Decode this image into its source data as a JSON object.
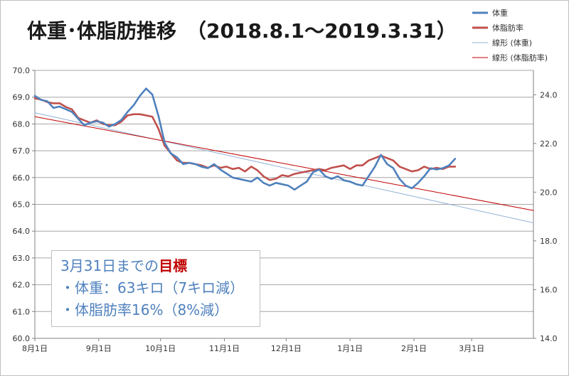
{
  "chart_data": {
    "type": "line",
    "title": "体重･体脂肪推移　（2018.8.1～2019.3.31）",
    "x_range": [
      "2018-08-01",
      "2019-03-31"
    ],
    "x_tick_labels": [
      "8月1日",
      "9月1日",
      "10月1日",
      "11月1日",
      "12月1日",
      "1月1日",
      "2月1日",
      "3月1日"
    ],
    "y_left": {
      "min": 60.0,
      "max": 70.0,
      "ticks": [
        "60.0",
        "61.0",
        "62.0",
        "63.0",
        "64.0",
        "65.0",
        "66.0",
        "67.0",
        "68.0",
        "69.0",
        "70.0"
      ]
    },
    "y_right": {
      "min": 14.0,
      "max": 25.0,
      "ticks": [
        "14.0",
        "16.0",
        "18.0",
        "20.0",
        "22.0",
        "24.0"
      ]
    },
    "grid": "horizontal",
    "legend_position": "top-right",
    "series": [
      {
        "name": "体重",
        "axis": "left",
        "color": "#4f81bd",
        "points": [
          [
            "2018-08-01",
            69.05
          ],
          [
            "2018-08-04",
            68.9
          ],
          [
            "2018-08-07",
            68.85
          ],
          [
            "2018-08-10",
            68.6
          ],
          [
            "2018-08-13",
            68.65
          ],
          [
            "2018-08-16",
            68.55
          ],
          [
            "2018-08-19",
            68.45
          ],
          [
            "2018-08-22",
            68.2
          ],
          [
            "2018-08-25",
            67.95
          ],
          [
            "2018-08-28",
            68.05
          ],
          [
            "2018-08-31",
            68.1
          ],
          [
            "2018-09-03",
            68.05
          ],
          [
            "2018-09-06",
            67.9
          ],
          [
            "2018-09-09",
            68.0
          ],
          [
            "2018-09-12",
            68.15
          ],
          [
            "2018-09-15",
            68.45
          ],
          [
            "2018-09-18",
            68.7
          ],
          [
            "2018-09-21",
            69.05
          ],
          [
            "2018-09-24",
            69.32
          ],
          [
            "2018-09-27",
            69.1
          ],
          [
            "2018-09-30",
            68.3
          ],
          [
            "2018-10-03",
            67.3
          ],
          [
            "2018-10-06",
            66.9
          ],
          [
            "2018-10-09",
            66.75
          ],
          [
            "2018-10-12",
            66.5
          ],
          [
            "2018-10-15",
            66.55
          ],
          [
            "2018-10-18",
            66.5
          ],
          [
            "2018-10-21",
            66.4
          ],
          [
            "2018-10-24",
            66.35
          ],
          [
            "2018-10-27",
            66.5
          ],
          [
            "2018-10-30",
            66.3
          ],
          [
            "2018-11-02",
            66.15
          ],
          [
            "2018-11-05",
            66.0
          ],
          [
            "2018-11-08",
            65.95
          ],
          [
            "2018-11-11",
            65.9
          ],
          [
            "2018-11-14",
            65.85
          ],
          [
            "2018-11-17",
            66.0
          ],
          [
            "2018-11-20",
            65.8
          ],
          [
            "2018-11-23",
            65.7
          ],
          [
            "2018-11-26",
            65.8
          ],
          [
            "2018-11-29",
            65.75
          ],
          [
            "2018-12-02",
            65.7
          ],
          [
            "2018-12-05",
            65.55
          ],
          [
            "2018-12-08",
            65.7
          ],
          [
            "2018-12-11",
            65.85
          ],
          [
            "2018-12-14",
            66.2
          ],
          [
            "2018-12-17",
            66.3
          ],
          [
            "2018-12-20",
            66.05
          ],
          [
            "2018-12-23",
            65.95
          ],
          [
            "2018-12-26",
            66.05
          ],
          [
            "2018-12-29",
            65.9
          ],
          [
            "2019-01-01",
            65.85
          ],
          [
            "2019-01-04",
            65.75
          ],
          [
            "2019-01-07",
            65.7
          ],
          [
            "2019-01-10",
            66.05
          ],
          [
            "2019-01-13",
            66.4
          ],
          [
            "2019-01-16",
            66.85
          ],
          [
            "2019-01-19",
            66.5
          ],
          [
            "2019-01-22",
            66.35
          ],
          [
            "2019-01-25",
            65.95
          ],
          [
            "2019-01-28",
            65.7
          ],
          [
            "2019-01-31",
            65.6
          ],
          [
            "2019-02-03",
            65.8
          ],
          [
            "2019-02-06",
            66.05
          ],
          [
            "2019-02-09",
            66.35
          ],
          [
            "2019-02-12",
            66.3
          ],
          [
            "2019-02-15",
            66.35
          ],
          [
            "2019-02-18",
            66.45
          ],
          [
            "2019-02-21",
            66.7
          ]
        ]
      },
      {
        "name": "体脂肪率",
        "axis": "right",
        "color": "#c0504d",
        "points": [
          [
            "2018-08-01",
            23.85
          ],
          [
            "2018-08-04",
            23.8
          ],
          [
            "2018-08-07",
            23.7
          ],
          [
            "2018-08-10",
            23.65
          ],
          [
            "2018-08-13",
            23.65
          ],
          [
            "2018-08-16",
            23.5
          ],
          [
            "2018-08-19",
            23.4
          ],
          [
            "2018-08-22",
            23.05
          ],
          [
            "2018-08-25",
            22.95
          ],
          [
            "2018-08-28",
            22.85
          ],
          [
            "2018-08-31",
            22.95
          ],
          [
            "2018-09-03",
            22.8
          ],
          [
            "2018-09-06",
            22.75
          ],
          [
            "2018-09-09",
            22.75
          ],
          [
            "2018-09-12",
            22.9
          ],
          [
            "2018-09-15",
            23.15
          ],
          [
            "2018-09-18",
            23.2
          ],
          [
            "2018-09-21",
            23.2
          ],
          [
            "2018-09-24",
            23.15
          ],
          [
            "2018-09-27",
            23.1
          ],
          [
            "2018-09-30",
            22.6
          ],
          [
            "2018-10-03",
            21.9
          ],
          [
            "2018-10-06",
            21.6
          ],
          [
            "2018-10-09",
            21.3
          ],
          [
            "2018-10-12",
            21.2
          ],
          [
            "2018-10-15",
            21.2
          ],
          [
            "2018-10-18",
            21.15
          ],
          [
            "2018-10-21",
            21.1
          ],
          [
            "2018-10-24",
            21.0
          ],
          [
            "2018-10-27",
            21.1
          ],
          [
            "2018-10-30",
            21.0
          ],
          [
            "2018-11-02",
            21.05
          ],
          [
            "2018-11-05",
            20.95
          ],
          [
            "2018-11-08",
            21.0
          ],
          [
            "2018-11-11",
            20.85
          ],
          [
            "2018-11-14",
            21.05
          ],
          [
            "2018-11-17",
            20.9
          ],
          [
            "2018-11-20",
            20.65
          ],
          [
            "2018-11-23",
            20.5
          ],
          [
            "2018-11-26",
            20.55
          ],
          [
            "2018-11-29",
            20.7
          ],
          [
            "2018-12-02",
            20.65
          ],
          [
            "2018-12-05",
            20.75
          ],
          [
            "2018-12-08",
            20.8
          ],
          [
            "2018-12-11",
            20.85
          ],
          [
            "2018-12-14",
            20.9
          ],
          [
            "2018-12-17",
            20.95
          ],
          [
            "2018-12-20",
            20.9
          ],
          [
            "2018-12-23",
            21.0
          ],
          [
            "2018-12-26",
            21.05
          ],
          [
            "2018-12-29",
            21.1
          ],
          [
            "2019-01-01",
            20.95
          ],
          [
            "2019-01-04",
            21.1
          ],
          [
            "2019-01-07",
            21.1
          ],
          [
            "2019-01-10",
            21.3
          ],
          [
            "2019-01-13",
            21.4
          ],
          [
            "2019-01-16",
            21.5
          ],
          [
            "2019-01-19",
            21.4
          ],
          [
            "2019-01-22",
            21.3
          ],
          [
            "2019-01-25",
            21.05
          ],
          [
            "2019-01-28",
            20.95
          ],
          [
            "2019-01-31",
            20.85
          ],
          [
            "2019-02-03",
            20.9
          ],
          [
            "2019-02-06",
            21.05
          ],
          [
            "2019-02-09",
            20.95
          ],
          [
            "2019-02-12",
            21.0
          ],
          [
            "2019-02-15",
            20.95
          ],
          [
            "2019-02-18",
            21.05
          ],
          [
            "2019-02-21",
            21.05
          ]
        ]
      },
      {
        "name": "線形 (体重)",
        "axis": "left",
        "color": "#95b3d7",
        "style": "trendline",
        "points": [
          [
            "2018-08-01",
            68.42
          ],
          [
            "2019-03-31",
            64.31
          ]
        ]
      },
      {
        "name": "線形 (体脂肪率)",
        "axis": "right",
        "color": "#c00000",
        "style": "trendline",
        "points": [
          [
            "2018-08-01",
            23.1
          ],
          [
            "2019-03-31",
            19.25
          ]
        ]
      }
    ]
  },
  "goal_box": {
    "heading_prefix": "3月31日までの",
    "heading_highlight": "目標",
    "lines": [
      "・体重：63キロ（7キロ減）",
      "・体脂肪率16%（8%減）"
    ]
  }
}
